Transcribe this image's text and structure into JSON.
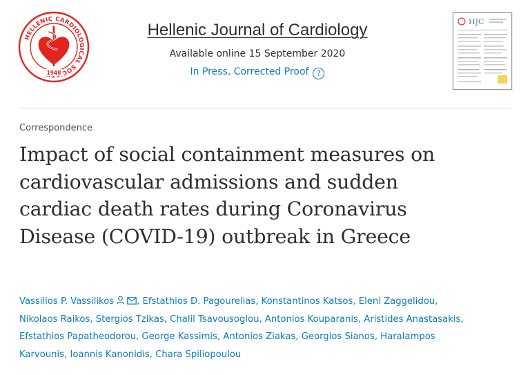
{
  "logo": {
    "name": "society-seal",
    "ring_text": "HELLENIC CARDIOLOGICAL SOCIETY",
    "year": "1948",
    "accent_color": "#e2241f"
  },
  "journal": {
    "title": "Hellenic Journal of Cardiology",
    "available": "Available online 15 September 2020",
    "status": "In Press, Corrected Proof",
    "help_icon": "question-circle-icon",
    "link_color": "#0c7dbb"
  },
  "cover": {
    "abbrev": "HJC"
  },
  "article": {
    "type": "Correspondence",
    "title_lines": [
      "Impact of social containment measures on",
      "cardiovascular admissions and sudden",
      "cardiac death rates during Coronavirus",
      "Disease (COVID-19) outbreak in Greece"
    ]
  },
  "authors": {
    "lines": [
      {
        "names": [
          "Vassilios P. Vassilikos",
          "Efstathios D. Pagourelias",
          "Konstantinos Katsos",
          "Eleni Zaggelidou"
        ],
        "trailing_comma": true
      },
      {
        "names": [
          "Nikolaos Raikos",
          "Stergios Tzikas",
          "Chalil Tsavousoglou",
          "Antonios Kouparanis",
          "Aristides Anastasakis"
        ],
        "trailing_comma": true
      },
      {
        "names": [
          "Efstathios Papatheodorou",
          "George Kassimis",
          "Antonios Ziakas",
          "Georgios Sianos",
          "Haralampos"
        ],
        "trailing_comma": false
      },
      {
        "names": [
          "Karvounis",
          "Ioannis Kanonidis",
          "Chara Spiliopoulou"
        ],
        "trailing_comma": false
      }
    ],
    "corresponding_icons": [
      "person-icon",
      "mail-icon"
    ]
  }
}
